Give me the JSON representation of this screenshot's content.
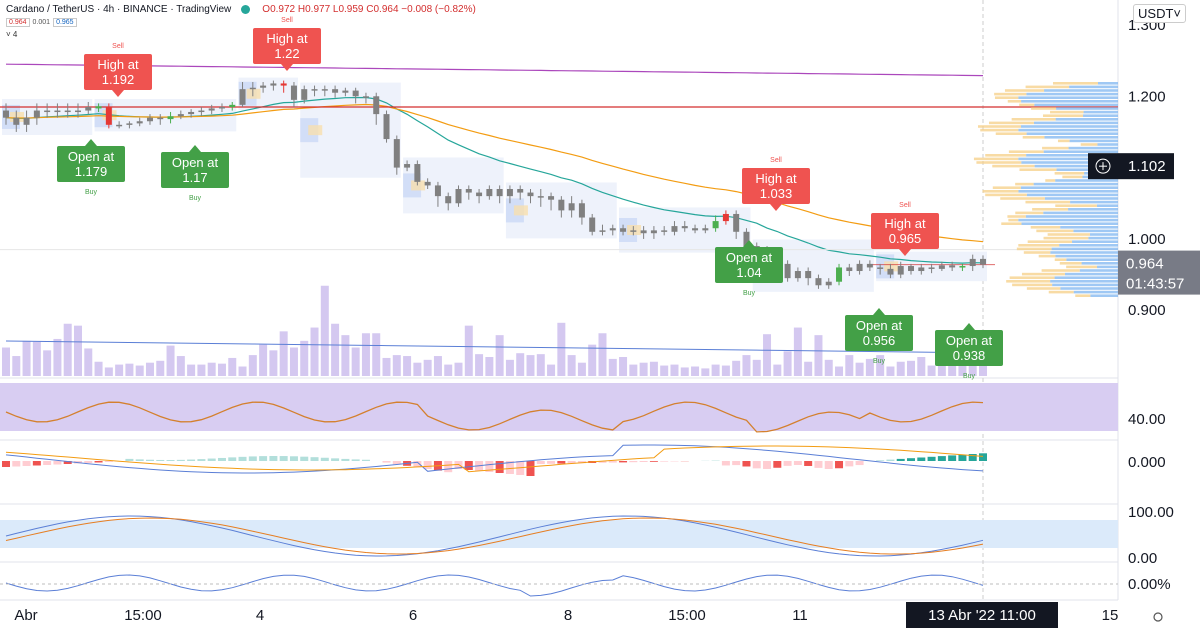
{
  "header": {
    "symbol": "Cardano / TetherUS · 4h · BINANCE · TradingView",
    "ohlc": "O0.972 H0.977 L0.959 C0.964 −0.008 (−0.82%)",
    "bid": "0.964",
    "spread": "0.001",
    "ask": "0.965",
    "collapse": "˅ 4",
    "currency": "USDT˅"
  },
  "chart_data": {
    "type": "candlestick",
    "symbol": "ADA/USDT",
    "interval": "4h",
    "price_axis": {
      "ticks": [
        "1.300",
        "1.200",
        "1.000",
        "0.900"
      ],
      "range": [
        0.805,
        1.335
      ]
    },
    "current_price": "0.964",
    "countdown": "01:43:57",
    "crosshair_price": "1.102",
    "time_axis": [
      "Abr",
      "15:00",
      "4",
      "6",
      "8",
      "15:00",
      "11",
      "15"
    ],
    "crosshair_time": "13 Abr '22   11:00",
    "candles": [
      [
        1.18,
        1.17,
        1.19,
        1.16
      ],
      [
        1.17,
        1.16,
        1.18,
        1.15
      ],
      [
        1.16,
        1.17,
        1.18,
        1.15
      ],
      [
        1.17,
        1.18,
        1.19,
        1.16
      ],
      [
        1.18,
        1.18,
        1.19,
        1.17
      ],
      [
        1.18,
        1.18,
        1.19,
        1.17
      ],
      [
        1.18,
        1.18,
        1.19,
        1.17
      ],
      [
        1.18,
        1.18,
        1.19,
        1.17
      ],
      [
        1.18,
        1.185,
        1.192,
        1.175
      ],
      [
        1.183,
        1.186,
        1.19,
        1.178
      ],
      [
        1.185,
        1.16,
        1.19,
        1.155
      ],
      [
        1.16,
        1.16,
        1.165,
        1.155
      ],
      [
        1.16,
        1.162,
        1.165,
        1.155
      ],
      [
        1.162,
        1.165,
        1.17,
        1.158
      ],
      [
        1.165,
        1.17,
        1.175,
        1.16
      ],
      [
        1.17,
        1.168,
        1.175,
        1.16
      ],
      [
        1.168,
        1.172,
        1.178,
        1.162
      ],
      [
        1.172,
        1.175,
        1.18,
        1.168
      ],
      [
        1.175,
        1.178,
        1.182,
        1.17
      ],
      [
        1.178,
        1.18,
        1.185,
        1.172
      ],
      [
        1.18,
        1.183,
        1.188,
        1.175
      ],
      [
        1.183,
        1.185,
        1.19,
        1.178
      ],
      [
        1.185,
        1.188,
        1.192,
        1.18
      ],
      [
        1.188,
        1.21,
        1.22,
        1.185
      ],
      [
        1.21,
        1.212,
        1.22,
        1.2
      ],
      [
        1.212,
        1.215,
        1.22,
        1.205
      ],
      [
        1.215,
        1.218,
        1.222,
        1.208
      ],
      [
        1.218,
        1.215,
        1.222,
        1.205
      ],
      [
        1.215,
        1.195,
        1.22,
        1.185
      ],
      [
        1.195,
        1.21,
        1.215,
        1.19
      ],
      [
        1.21,
        1.208,
        1.215,
        1.2
      ],
      [
        1.208,
        1.21,
        1.215,
        1.2
      ],
      [
        1.21,
        1.205,
        1.215,
        1.198
      ],
      [
        1.205,
        1.208,
        1.212,
        1.2
      ],
      [
        1.208,
        1.2,
        1.212,
        1.19
      ],
      [
        1.2,
        1.2,
        1.205,
        1.19
      ],
      [
        1.2,
        1.175,
        1.205,
        1.16
      ],
      [
        1.175,
        1.14,
        1.18,
        1.135
      ],
      [
        1.14,
        1.1,
        1.145,
        1.09
      ],
      [
        1.1,
        1.105,
        1.11,
        1.095
      ],
      [
        1.105,
        1.08,
        1.11,
        1.075
      ],
      [
        1.08,
        1.075,
        1.085,
        1.07
      ],
      [
        1.075,
        1.06,
        1.08,
        1.045
      ],
      [
        1.06,
        1.05,
        1.065,
        1.04
      ],
      [
        1.05,
        1.07,
        1.075,
        1.045
      ],
      [
        1.07,
        1.065,
        1.075,
        1.055
      ],
      [
        1.065,
        1.06,
        1.07,
        1.05
      ],
      [
        1.06,
        1.07,
        1.075,
        1.055
      ],
      [
        1.07,
        1.06,
        1.075,
        1.05
      ],
      [
        1.06,
        1.07,
        1.075,
        1.05
      ],
      [
        1.07,
        1.065,
        1.075,
        1.055
      ],
      [
        1.065,
        1.06,
        1.07,
        1.05
      ],
      [
        1.06,
        1.06,
        1.07,
        1.045
      ],
      [
        1.06,
        1.055,
        1.065,
        1.04
      ],
      [
        1.055,
        1.04,
        1.06,
        1.03
      ],
      [
        1.04,
        1.05,
        1.06,
        1.03
      ],
      [
        1.05,
        1.03,
        1.055,
        1.02
      ],
      [
        1.03,
        1.01,
        1.035,
        1.005
      ],
      [
        1.01,
        1.012,
        1.02,
        1.005
      ],
      [
        1.012,
        1.015,
        1.02,
        1.005
      ],
      [
        1.015,
        1.01,
        1.02,
        1.005
      ],
      [
        1.01,
        1.012,
        1.018,
        1.005
      ],
      [
        1.012,
        1.008,
        1.018,
        1.0
      ],
      [
        1.008,
        1.012,
        1.018,
        1.0
      ],
      [
        1.012,
        1.01,
        1.018,
        1.005
      ],
      [
        1.01,
        1.018,
        1.025,
        1.005
      ],
      [
        1.018,
        1.015,
        1.025,
        1.01
      ],
      [
        1.015,
        1.012,
        1.02,
        1.008
      ],
      [
        1.012,
        1.015,
        1.02,
        1.008
      ],
      [
        1.015,
        1.025,
        1.033,
        1.01
      ],
      [
        1.025,
        1.035,
        1.04,
        1.02
      ],
      [
        1.035,
        1.01,
        1.04,
        1.0
      ],
      [
        1.01,
        0.99,
        1.015,
        0.985
      ],
      [
        0.99,
        0.985,
        0.995,
        0.975
      ],
      [
        0.985,
        0.95,
        0.99,
        0.94
      ],
      [
        0.95,
        0.965,
        0.97,
        0.945
      ],
      [
        0.965,
        0.945,
        0.97,
        0.94
      ],
      [
        0.945,
        0.955,
        0.96,
        0.94
      ],
      [
        0.955,
        0.945,
        0.96,
        0.935
      ],
      [
        0.945,
        0.935,
        0.95,
        0.93
      ],
      [
        0.935,
        0.94,
        0.945,
        0.93
      ],
      [
        0.94,
        0.96,
        0.965,
        0.935
      ],
      [
        0.96,
        0.955,
        0.965,
        0.948
      ],
      [
        0.955,
        0.965,
        0.97,
        0.95
      ],
      [
        0.965,
        0.96,
        0.97,
        0.955
      ],
      [
        0.96,
        0.958,
        0.965,
        0.95
      ],
      [
        0.958,
        0.95,
        0.965,
        0.945
      ],
      [
        0.95,
        0.962,
        0.968,
        0.945
      ],
      [
        0.962,
        0.955,
        0.965,
        0.95
      ],
      [
        0.955,
        0.96,
        0.965,
        0.95
      ],
      [
        0.96,
        0.958,
        0.965,
        0.952
      ],
      [
        0.958,
        0.963,
        0.968,
        0.955
      ],
      [
        0.963,
        0.96,
        0.968,
        0.955
      ],
      [
        0.96,
        0.962,
        0.965,
        0.955
      ],
      [
        0.962,
        0.972,
        0.978,
        0.955
      ],
      [
        0.972,
        0.964,
        0.977,
        0.959
      ]
    ],
    "red_horizontal_level": 1.185,
    "signals": [
      {
        "type": "Sell",
        "label": "High at",
        "value": "1.192"
      },
      {
        "type": "Sell",
        "label": "High at",
        "value": "1.22"
      },
      {
        "type": "Buy",
        "label": "Open at",
        "value": "1.179"
      },
      {
        "type": "Buy",
        "label": "Open at",
        "value": "1.17"
      },
      {
        "type": "Sell",
        "label": "High at",
        "value": "1.033"
      },
      {
        "type": "Sell",
        "label": "High at",
        "value": "0.965"
      },
      {
        "type": "Buy",
        "label": "Open at",
        "value": "1.04"
      },
      {
        "type": "Buy",
        "label": "Open at",
        "value": "0.956"
      },
      {
        "type": "Buy",
        "label": "Open at",
        "value": "0.938"
      }
    ],
    "signal_small_labels": {
      "sell": "Sell",
      "buy": "Buy"
    },
    "oscillators": [
      {
        "name": "rsi",
        "tick": "40.00"
      },
      {
        "name": "macd",
        "tick": "0.000"
      },
      {
        "name": "stoch",
        "ticks": [
          "100.00",
          "0.00"
        ]
      },
      {
        "name": "roc",
        "tick": "0.00%"
      }
    ]
  },
  "colors": {
    "up": "#4caf50",
    "down": "#e53935",
    "neutral": "#808080",
    "ema_orange": "#f39c12",
    "ema_teal": "#26a69a",
    "ma_purple": "#ab47bc",
    "level_red": "#d32f2f",
    "volume": "#d4c8f0",
    "rsi_band": "#d8cdf2",
    "stoch_band": "#dbeafa",
    "signal_sell": "#ef5350",
    "signal_buy": "#43a047"
  },
  "icons": {
    "crosshair": "crosshair-icon",
    "settings": "gear-icon"
  }
}
